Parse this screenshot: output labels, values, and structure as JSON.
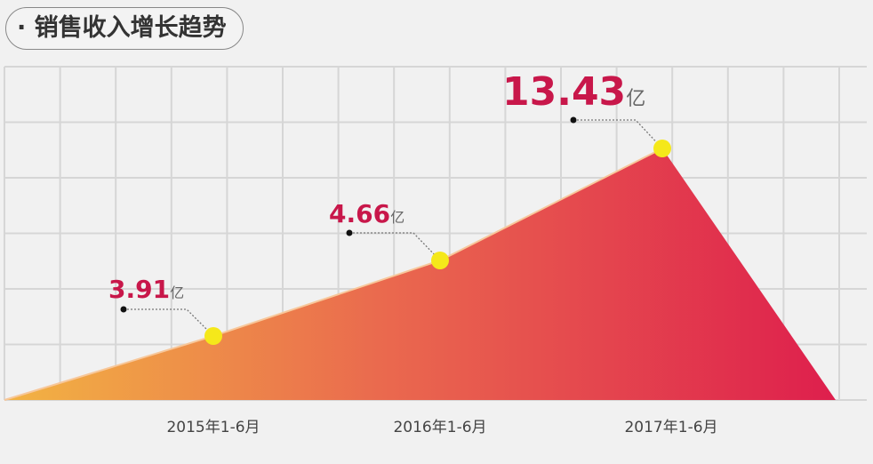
{
  "chart_data": {
    "type": "area",
    "title": "· 销售收入增长趋势",
    "categories": [
      "2015年1-6月",
      "2016年1-6月",
      "2017年1-6月"
    ],
    "values": [
      3.91,
      4.66,
      13.43
    ],
    "unit": "亿",
    "data_labels": [
      "3.91",
      "4.66",
      "13.43"
    ],
    "grid": true,
    "colors": {
      "gradient_start": "#f2b443",
      "gradient_end": "#de1f4d",
      "label": "#c8174a",
      "marker": "#f5e81a"
    }
  }
}
